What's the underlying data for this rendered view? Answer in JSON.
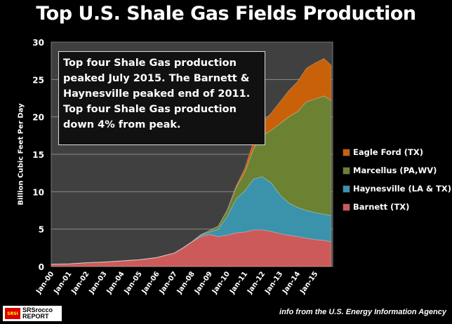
{
  "chart_data": {
    "type": "area",
    "stacked": true,
    "title": "Top U.S. Shale Gas Fields Production",
    "ylabel": "Billion  Cubic  Feet  Per Day",
    "xlabel": "",
    "ylim": [
      0,
      30
    ],
    "yticks": [
      0,
      5,
      10,
      15,
      20,
      25,
      30
    ],
    "xticks": [
      "Jan-00",
      "Jan-01",
      "Jan-02",
      "Jan-03",
      "Jan-04",
      "Jan-05",
      "Jan-06",
      "Jan-07",
      "Jan-08",
      "Jan-09",
      "Jan-10",
      "Jan-11",
      "Jan-12",
      "Jan-13",
      "Jan-14",
      "Jan-15"
    ],
    "grid": true,
    "legend_placement": "right",
    "x": [
      "2000-01",
      "2001-01",
      "2002-01",
      "2003-01",
      "2004-01",
      "2005-01",
      "2006-01",
      "2006-07",
      "2007-01",
      "2007-07",
      "2008-01",
      "2008-07",
      "2009-01",
      "2009-07",
      "2010-01",
      "2010-07",
      "2011-01",
      "2011-07",
      "2012-01",
      "2012-07",
      "2013-01",
      "2013-07",
      "2014-01",
      "2014-07",
      "2015-01",
      "2015-07",
      "2015-12"
    ],
    "series": [
      {
        "name": "Barnett (TX)",
        "color": "#cd5a5a",
        "values": [
          0.3,
          0.35,
          0.5,
          0.6,
          0.75,
          0.9,
          1.2,
          1.5,
          1.8,
          2.5,
          3.3,
          4.0,
          4.3,
          4.0,
          4.2,
          4.5,
          4.6,
          4.9,
          4.9,
          4.7,
          4.4,
          4.2,
          4.0,
          3.8,
          3.6,
          3.5,
          3.3
        ]
      },
      {
        "name": "Haynesville (LA & TX)",
        "color": "#3a93ab",
        "values": [
          0,
          0,
          0,
          0,
          0,
          0,
          0,
          0,
          0,
          0,
          0,
          0.2,
          0.3,
          1.0,
          2.5,
          4.5,
          5.5,
          6.8,
          7.1,
          6.5,
          5.2,
          4.3,
          3.9,
          3.7,
          3.6,
          3.5,
          3.5
        ]
      },
      {
        "name": "Marcellus (PA,WV)",
        "color": "#6b8233",
        "values": [
          0,
          0,
          0,
          0,
          0,
          0,
          0,
          0,
          0,
          0,
          0,
          0.05,
          0.2,
          0.4,
          0.8,
          1.5,
          2.5,
          4.0,
          5.5,
          7.0,
          9.5,
          11.5,
          12.8,
          14.5,
          15.2,
          15.8,
          15.4
        ]
      },
      {
        "name": "Eagle Ford (TX)",
        "color": "#c8610a",
        "values": [
          0,
          0,
          0,
          0,
          0,
          0,
          0,
          0,
          0,
          0,
          0,
          0,
          0,
          0,
          0.05,
          0.2,
          0.5,
          1.0,
          1.8,
          2.3,
          2.9,
          3.5,
          4.0,
          4.5,
          4.8,
          5.0,
          4.7
        ]
      }
    ],
    "annotation": "Top four Shale Gas production peaked July 2015.  The Barnett & Haynesville peaked end of 2011.   Top four Shale Gas production down 4% from peak.",
    "plot_background": "#404040"
  },
  "source": "info from the U.S. Energy Information Agency",
  "logo": {
    "mark": "SRSI",
    "line1": "SRSrocco",
    "line2": "REPORT"
  }
}
